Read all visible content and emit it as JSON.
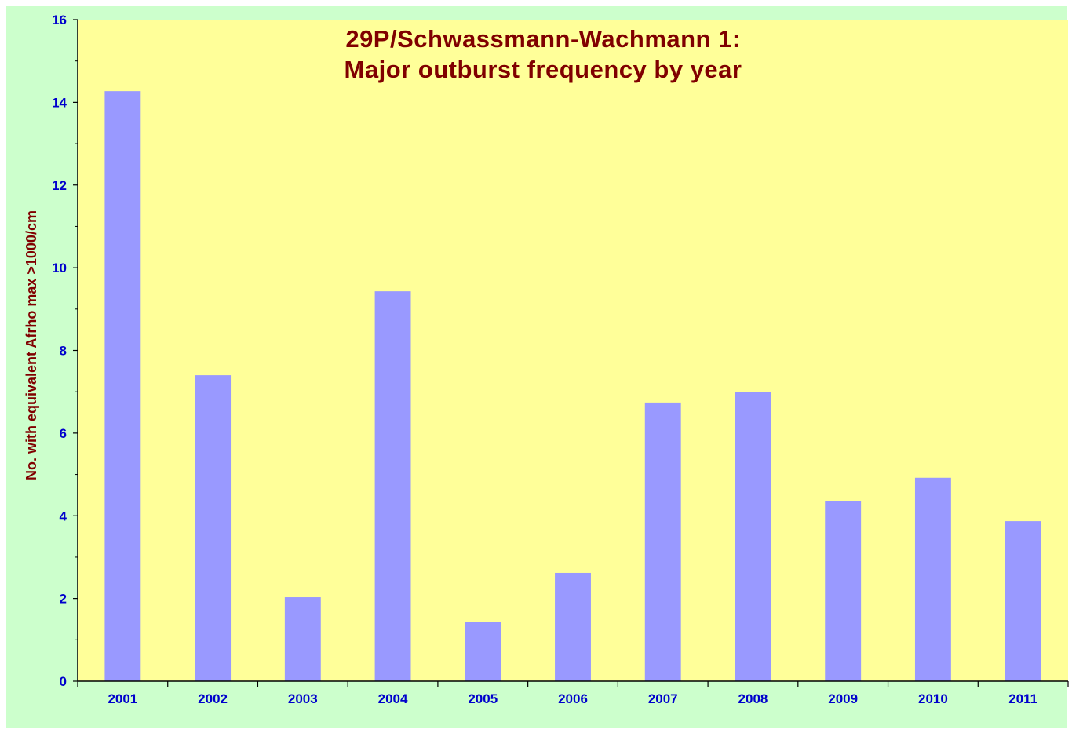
{
  "chart_data": {
    "type": "bar",
    "title_lines": [
      "29P/Schwassmann-Wachmann 1:",
      "Major outburst frequency by year"
    ],
    "xlabel": "",
    "ylabel": "No. with equivalent  Afrho max >1000/cm",
    "categories": [
      "2001",
      "2002",
      "2003",
      "2004",
      "2005",
      "2006",
      "2007",
      "2008",
      "2009",
      "2010",
      "2011"
    ],
    "values": [
      14.27,
      7.4,
      2.03,
      9.43,
      1.43,
      2.62,
      6.74,
      7.0,
      4.35,
      4.92,
      3.87
    ],
    "ylim": [
      0,
      16
    ],
    "yticks": [
      0,
      2,
      4,
      6,
      8,
      10,
      12,
      14,
      16
    ],
    "grid": false,
    "legend": "none",
    "colors": {
      "frame_background": "#ccffcc",
      "plot_background": "#ffff99",
      "bar": "#9999ff",
      "tick_text": "#0000cc",
      "title_text": "#800000"
    }
  }
}
